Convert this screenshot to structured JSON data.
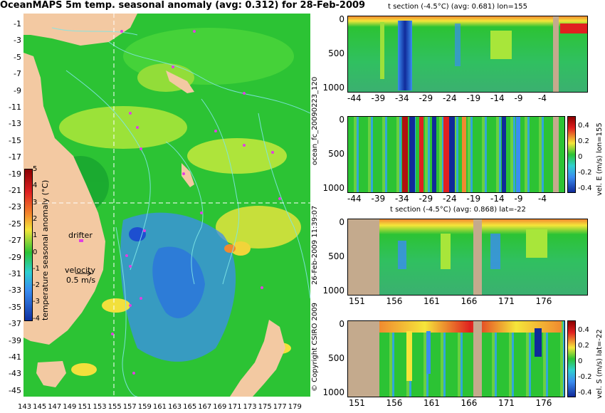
{
  "title": "OceanMAPS 5m temp. seasonal anomaly (avg: 0.312) for 28-Feb-2009",
  "map": {
    "lat_labels": [
      "-1",
      "-3",
      "-5",
      "-7",
      "-9",
      "-11",
      "-13",
      "-15",
      "-17",
      "-19",
      "-21",
      "-23",
      "-25",
      "-27",
      "-29",
      "-31",
      "-33",
      "-35",
      "-37",
      "-39",
      "-41",
      "-43",
      "-45"
    ],
    "lon_labels": [
      "143",
      "145",
      "147",
      "149",
      "151",
      "153",
      "155",
      "157",
      "159",
      "161",
      "163",
      "165",
      "167",
      "169",
      "171",
      "173",
      "175",
      "177",
      "179"
    ],
    "legend_drifter": "drifter",
    "legend_velocity": "velocity",
    "legend_speed": "0.5 m/s",
    "colorbar": {
      "label": "temperature seasonal anomaly (°C)",
      "ticks": [
        "5",
        "4",
        "3",
        "2",
        "1",
        "0",
        "-1",
        "-2",
        "-3",
        "-4"
      ]
    }
  },
  "panels": [
    {
      "title": "t section (-4.5°C) (avg: 0.681) lon=155",
      "y_ticks": [
        "0",
        "500",
        "1000"
      ],
      "x_ticks": [
        "-44",
        "-39",
        "-34",
        "-29",
        "-24",
        "-19",
        "-14",
        "-9",
        "-4"
      ]
    },
    {
      "title": "",
      "y_ticks": [
        "0",
        "500",
        "1000"
      ],
      "x_ticks": [
        "-44",
        "-39",
        "-34",
        "-29",
        "-24",
        "-19",
        "-14",
        "-9",
        "-4"
      ],
      "colorbar_label": "vel. E (m/s) lon=155",
      "colorbar_ticks": [
        "0.4",
        "0.2",
        "0",
        "-0.2",
        "-0.4"
      ]
    },
    {
      "title": "t section (-4.5°C) (avg: 0.868) lat=-22",
      "y_ticks": [
        "0",
        "500",
        "1000"
      ],
      "x_ticks": [
        "151",
        "156",
        "161",
        "166",
        "171",
        "176"
      ]
    },
    {
      "title": "",
      "y_ticks": [
        "0",
        "500",
        "1000"
      ],
      "x_ticks": [
        "151",
        "156",
        "161",
        "166",
        "171",
        "176"
      ],
      "colorbar_label": "vel. S (m/s) lat=-22",
      "colorbar_ticks": [
        "0.4",
        "0.2",
        "0",
        "-0.2",
        "-0.4"
      ]
    }
  ],
  "side_text": {
    "forecast_id": "ocean_fc_20090223_120",
    "timestamp": "26-Feb-2009 11:39:07",
    "copyright": "© Copyright CSIRO 2009"
  },
  "colors": {
    "land": "#f3c9a2",
    "section_land": "#c4aa8d",
    "ocean_green": "#22c22a",
    "anomaly_blue": "#3b8df0",
    "drifter": "#e040e0",
    "contour": "#7fe6e6"
  }
}
